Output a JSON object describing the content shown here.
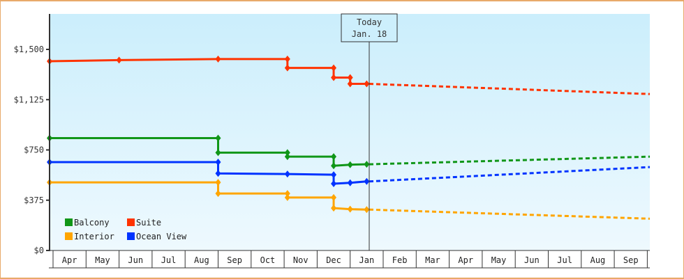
{
  "chart_data": {
    "type": "line",
    "title": "",
    "xlabel": "",
    "ylabel": "",
    "ylim": [
      0,
      1750
    ],
    "yticks": [
      {
        "value": 0,
        "label": "$0"
      },
      {
        "value": 375,
        "label": "$375"
      },
      {
        "value": 750,
        "label": "$750"
      },
      {
        "value": 1125,
        "label": "$1,125"
      },
      {
        "value": 1500,
        "label": "$1,500"
      }
    ],
    "categories": [
      "Apr",
      "May",
      "Jun",
      "Jul",
      "Aug",
      "Sep",
      "Oct",
      "Nov",
      "Dec",
      "Jan",
      "Feb",
      "Mar",
      "Apr",
      "May",
      "Jun",
      "Jul",
      "Aug",
      "Sep"
    ],
    "grid": false,
    "legend_position": "bottom-left inside",
    "annotation": {
      "line1": "Today",
      "line2": "Jan. 18",
      "x_month_index": 9.5
    },
    "series": [
      {
        "name": "Balcony",
        "color": "#109618",
        "history": [
          [
            0,
            838
          ],
          [
            5,
            838
          ],
          [
            5,
            730
          ],
          [
            7.1,
            730
          ],
          [
            7.1,
            700
          ],
          [
            8.5,
            700
          ],
          [
            8.5,
            632
          ],
          [
            9,
            640
          ],
          [
            9.5,
            643
          ]
        ],
        "forecast": [
          [
            9.5,
            643
          ],
          [
            18.8,
            700
          ]
        ]
      },
      {
        "name": "Suite",
        "color": "#ff3300",
        "history": [
          [
            0,
            1412
          ],
          [
            2,
            1420
          ],
          [
            5,
            1428
          ],
          [
            7.1,
            1428
          ],
          [
            7.1,
            1362
          ],
          [
            8.5,
            1362
          ],
          [
            8.5,
            1290
          ],
          [
            9,
            1290
          ],
          [
            9,
            1243
          ],
          [
            9.5,
            1243
          ]
        ],
        "forecast": [
          [
            9.5,
            1243
          ],
          [
            18.8,
            1167
          ]
        ]
      },
      {
        "name": "Interior",
        "color": "#ffa500",
        "history": [
          [
            0,
            508
          ],
          [
            5,
            508
          ],
          [
            5,
            425
          ],
          [
            7.1,
            425
          ],
          [
            7.1,
            395
          ],
          [
            8.5,
            395
          ],
          [
            8.5,
            316
          ],
          [
            9,
            308
          ],
          [
            9.5,
            305
          ]
        ],
        "forecast": [
          [
            9.5,
            305
          ],
          [
            18.8,
            237
          ]
        ]
      },
      {
        "name": "Ocean View",
        "color": "#0033ff",
        "history": [
          [
            0,
            659
          ],
          [
            5,
            659
          ],
          [
            5,
            575
          ],
          [
            7.1,
            570
          ],
          [
            8.5,
            565
          ],
          [
            8.5,
            498
          ],
          [
            9,
            505
          ],
          [
            9.5,
            515
          ]
        ],
        "forecast": [
          [
            9.5,
            515
          ],
          [
            18.8,
            622
          ]
        ]
      }
    ]
  },
  "legend": [
    {
      "label": "Balcony",
      "color": "#109618"
    },
    {
      "label": "Suite",
      "color": "#ff3300"
    },
    {
      "label": "Interior",
      "color": "#ffa500"
    },
    {
      "label": "Ocean View",
      "color": "#0033ff"
    }
  ]
}
